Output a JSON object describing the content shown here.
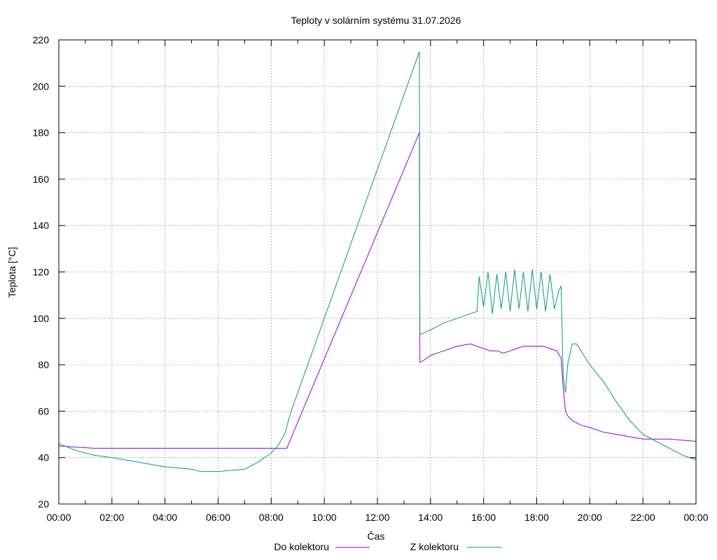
{
  "chart_data": {
    "type": "line",
    "title": "Teploty v solárním systému 31.07.2026",
    "xlabel": "Čas",
    "ylabel": "Teplota [°C]",
    "xlim": [
      "00:00",
      "24:00"
    ],
    "ylim": [
      20,
      220
    ],
    "x_ticks": [
      "00:00",
      "02:00",
      "04:00",
      "06:00",
      "08:00",
      "10:00",
      "12:00",
      "14:00",
      "16:00",
      "18:00",
      "20:00",
      "22:00",
      "00:00"
    ],
    "y_ticks": [
      20,
      40,
      60,
      80,
      100,
      120,
      140,
      160,
      180,
      200,
      220
    ],
    "grid": true,
    "legend_position": "bottom",
    "series": [
      {
        "name": "Do kolektoru",
        "color": "#9400d3",
        "x": [
          "00:00",
          "01:20",
          "08:35",
          "13:35",
          "13:36",
          "13:45",
          "14:00",
          "14:30",
          "15:00",
          "15:30",
          "15:45",
          "16:00",
          "16:15",
          "16:30",
          "16:45",
          "17:00",
          "17:15",
          "17:30",
          "17:45",
          "18:00",
          "18:15",
          "18:30",
          "18:45",
          "18:55",
          "19:00",
          "19:05",
          "19:10",
          "19:20",
          "19:40",
          "20:00",
          "20:30",
          "21:00",
          "21:30",
          "22:00",
          "23:00",
          "24:00"
        ],
        "values": [
          45,
          44,
          44,
          180,
          81,
          82,
          84,
          86,
          88,
          89,
          88,
          87,
          86,
          86,
          85,
          86,
          87,
          88,
          88,
          88,
          88,
          87,
          86,
          83,
          70,
          60,
          58,
          56,
          54,
          53,
          51,
          50,
          49,
          48,
          48,
          47
        ]
      },
      {
        "name": "Z kolektoru",
        "color": "#009e73",
        "x": [
          "00:00",
          "00:40",
          "01:20",
          "02:00",
          "03:00",
          "04:00",
          "05:00",
          "05:20",
          "06:00",
          "07:00",
          "07:30",
          "08:00",
          "08:15",
          "08:30",
          "08:45",
          "13:35",
          "13:36",
          "14:00",
          "14:30",
          "15:00",
          "15:30",
          "15:45",
          "15:50",
          "16:00",
          "16:10",
          "16:20",
          "16:30",
          "16:40",
          "16:50",
          "17:00",
          "17:10",
          "17:20",
          "17:30",
          "17:40",
          "17:50",
          "18:00",
          "18:10",
          "18:20",
          "18:30",
          "18:40",
          "18:50",
          "18:55",
          "19:00",
          "19:05",
          "19:10",
          "19:20",
          "19:30",
          "19:40",
          "20:00",
          "20:30",
          "21:00",
          "21:30",
          "22:00",
          "22:30",
          "23:00",
          "23:30",
          "24:00"
        ],
        "values": [
          46,
          43,
          41,
          40,
          38,
          36,
          35,
          34,
          34,
          35,
          38,
          42,
          45,
          50,
          60,
          215,
          93,
          95,
          98,
          100,
          102,
          103,
          118,
          105,
          120,
          102,
          119,
          104,
          120,
          103,
          121,
          104,
          120,
          103,
          121,
          104,
          120,
          103,
          119,
          104,
          112,
          114,
          75,
          68,
          80,
          89,
          89,
          86,
          80,
          73,
          64,
          56,
          50,
          47,
          44,
          41,
          39
        ]
      }
    ]
  }
}
